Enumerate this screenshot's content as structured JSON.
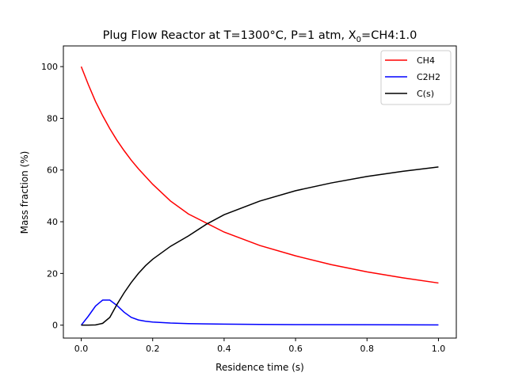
{
  "chart_data": {
    "type": "line",
    "title": "Plug Flow Reactor at T=1300°C, P=1 atm, X",
    "title_sub": "0",
    "title_tail": "=CH4:1.0",
    "xlabel": "Residence time (s)",
    "ylabel": "Mass fraction (%)",
    "xlim": [
      -0.05,
      1.05
    ],
    "ylim": [
      -5,
      108
    ],
    "xticks": [
      0.0,
      0.2,
      0.4,
      0.6,
      0.8,
      1.0
    ],
    "xtick_labels": [
      "0.0",
      "0.2",
      "0.4",
      "0.6",
      "0.8",
      "1.0"
    ],
    "yticks": [
      0,
      20,
      40,
      60,
      80,
      100
    ],
    "ytick_labels": [
      "0",
      "20",
      "40",
      "60",
      "80",
      "100"
    ],
    "legend_position": "top-right",
    "grid": false,
    "series": [
      {
        "name": "CH4",
        "color": "#ff0000",
        "x": [
          0,
          0.02,
          0.04,
          0.06,
          0.08,
          0.1,
          0.12,
          0.14,
          0.16,
          0.2,
          0.25,
          0.3,
          0.35,
          0.4,
          0.5,
          0.6,
          0.7,
          0.8,
          0.9,
          1.0
        ],
        "y": [
          100,
          93,
          86.5,
          81,
          76,
          71.5,
          67.5,
          63.8,
          60.5,
          54.5,
          48,
          43,
          39.5,
          36,
          30.8,
          26.8,
          23.4,
          20.6,
          18.3,
          16.3
        ]
      },
      {
        "name": "C2H2",
        "color": "#0000ff",
        "x": [
          0,
          0.02,
          0.04,
          0.06,
          0.08,
          0.1,
          0.12,
          0.14,
          0.16,
          0.18,
          0.2,
          0.25,
          0.3,
          0.4,
          0.5,
          0.6,
          0.8,
          1.0
        ],
        "y": [
          0,
          3.5,
          7.4,
          9.7,
          9.7,
          7.6,
          5,
          3,
          2,
          1.5,
          1.2,
          0.8,
          0.6,
          0.4,
          0.3,
          0.2,
          0.15,
          0.1
        ]
      },
      {
        "name": "C(s)",
        "color": "#000000",
        "x": [
          0,
          0.02,
          0.04,
          0.06,
          0.08,
          0.1,
          0.12,
          0.14,
          0.16,
          0.18,
          0.2,
          0.25,
          0.3,
          0.35,
          0.4,
          0.5,
          0.6,
          0.7,
          0.8,
          0.9,
          1.0
        ],
        "y": [
          0,
          0,
          0.1,
          0.7,
          3,
          8,
          12.5,
          16.5,
          20,
          23,
          25.5,
          30.5,
          34.5,
          39,
          42.7,
          48,
          52,
          55,
          57.5,
          59.5,
          61.2
        ]
      }
    ]
  }
}
